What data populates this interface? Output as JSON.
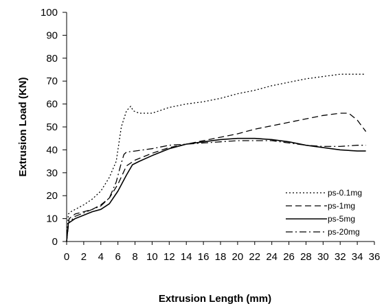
{
  "chart_data": {
    "type": "line",
    "title": "",
    "xlabel": "Extrusion Length (mm)",
    "ylabel": "Extrusion Load (KN)",
    "xlim": [
      0,
      36
    ],
    "ylim": [
      0,
      100
    ],
    "x_ticks": [
      0,
      2,
      4,
      6,
      8,
      10,
      12,
      14,
      16,
      18,
      20,
      22,
      24,
      26,
      28,
      30,
      32,
      34,
      36
    ],
    "x_tick_labels": [
      "0",
      "2",
      "4",
      "6",
      "8",
      "10",
      "12",
      "14",
      "16",
      "18",
      "20",
      "22",
      "24",
      "26",
      "28",
      "30",
      "32",
      "34",
      "36"
    ],
    "y_ticks": [
      0,
      10,
      20,
      30,
      40,
      50,
      60,
      70,
      80,
      90,
      100
    ],
    "y_tick_labels": [
      "0",
      "10",
      "20",
      "30",
      "40",
      "50",
      "60",
      "70",
      "80",
      "90",
      "100"
    ],
    "grid": false,
    "legend_position": "bottom-right",
    "series": [
      {
        "name": "ps-0.1mg",
        "dash": "dotted",
        "color": "#000000",
        "x": [
          0,
          0.2,
          0.5,
          1,
          2,
          3,
          4,
          5,
          5.8,
          6.4,
          7,
          7.5,
          7.8,
          8.5,
          10,
          12,
          14,
          16,
          18,
          20,
          22,
          24,
          26,
          28,
          30,
          32,
          34,
          35
        ],
        "y": [
          0,
          12,
          13,
          14,
          16,
          18.5,
          22,
          28,
          35,
          50,
          57,
          59,
          57,
          56,
          56,
          58.5,
          60,
          61,
          62.5,
          64.5,
          66,
          68,
          69.5,
          71,
          72,
          73,
          73,
          73
        ]
      },
      {
        "name": "ps-1mg",
        "dash": "dashed",
        "color": "#000000",
        "x": [
          0,
          0.3,
          1,
          2,
          3,
          4,
          5,
          6,
          7,
          8,
          10,
          12,
          14,
          16,
          18,
          20,
          22,
          24,
          26,
          28,
          30,
          32,
          33,
          34,
          35
        ],
        "y": [
          0,
          10,
          12,
          13,
          14,
          16,
          19,
          25,
          33,
          35.5,
          38.5,
          41,
          42.5,
          44,
          45.5,
          47,
          49,
          50.5,
          52,
          53.5,
          55,
          56,
          56,
          53,
          48
        ]
      },
      {
        "name": "ps-5mg",
        "dash": "solid",
        "color": "#000000",
        "x": [
          0,
          0.2,
          1,
          2,
          3,
          4,
          5,
          6,
          7,
          7.7,
          8.5,
          10,
          12,
          14,
          16,
          18,
          20,
          22,
          24,
          26,
          28,
          30,
          32,
          34,
          35
        ],
        "y": [
          0,
          8,
          10,
          11.5,
          13,
          14,
          16.5,
          22,
          29,
          33.5,
          35,
          37.5,
          40.5,
          42.5,
          43.5,
          44.5,
          45,
          45,
          44.5,
          43.5,
          42,
          41,
          40,
          39.5,
          39.5
        ]
      },
      {
        "name": "ps-20mg",
        "dash": "dashdot",
        "color": "#000000",
        "x": [
          0,
          0.2,
          1,
          2,
          3,
          4,
          5,
          5.8,
          6.3,
          6.7,
          7,
          8,
          10,
          12,
          14,
          16,
          18,
          20,
          22,
          24,
          26,
          28,
          30,
          32,
          34,
          35
        ],
        "y": [
          0,
          8,
          11,
          12.5,
          14,
          15.5,
          19,
          26,
          33,
          38,
          39,
          39.5,
          40.5,
          42,
          42.5,
          43,
          43.5,
          44,
          44,
          44,
          43,
          42,
          41.5,
          41.5,
          42,
          42
        ]
      }
    ]
  }
}
